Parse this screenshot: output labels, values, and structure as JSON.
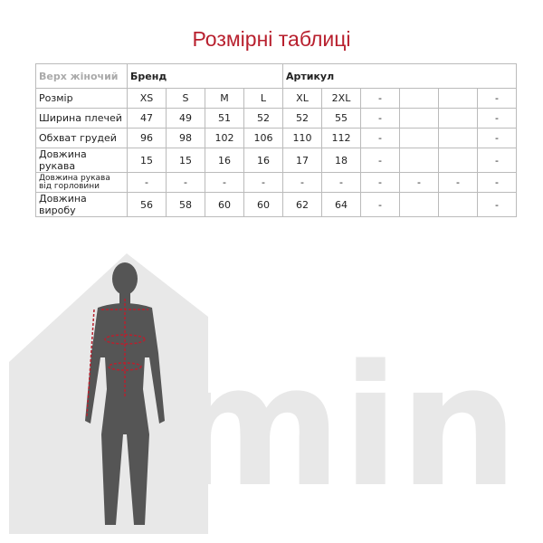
{
  "title": "Розмірні таблиці",
  "table": {
    "category": "Верх жіночий",
    "brand_label": "Бренд",
    "article_label": "Артикул",
    "rows": [
      {
        "label": "Розмір",
        "values": [
          "XS",
          "S",
          "M",
          "L",
          "XL",
          "2XL",
          "-",
          "",
          "",
          "-"
        ]
      },
      {
        "label": "Ширина плечей",
        "values": [
          "47",
          "49",
          "51",
          "52",
          "52",
          "55",
          "-",
          "",
          "",
          "-"
        ]
      },
      {
        "label": "Обхват грудей",
        "values": [
          "96",
          "98",
          "102",
          "106",
          "110",
          "112",
          "-",
          "",
          "",
          "-"
        ]
      },
      {
        "label": "Довжина рукава",
        "values": [
          "15",
          "15",
          "16",
          "16",
          "17",
          "18",
          "-",
          "",
          "",
          "-"
        ]
      },
      {
        "label": "Довжина рукава від горловини",
        "values": [
          "-",
          "-",
          "-",
          "-",
          "-",
          "-",
          "-",
          "-",
          "-",
          "-"
        ]
      },
      {
        "label": "Довжина виробу",
        "values": [
          "56",
          "58",
          "60",
          "60",
          "62",
          "64",
          "-",
          "",
          "",
          "-"
        ]
      }
    ]
  },
  "colors": {
    "accent": "#b8202e",
    "watermark": "#e6e6e6",
    "figure": "#555555"
  },
  "logo": "min"
}
